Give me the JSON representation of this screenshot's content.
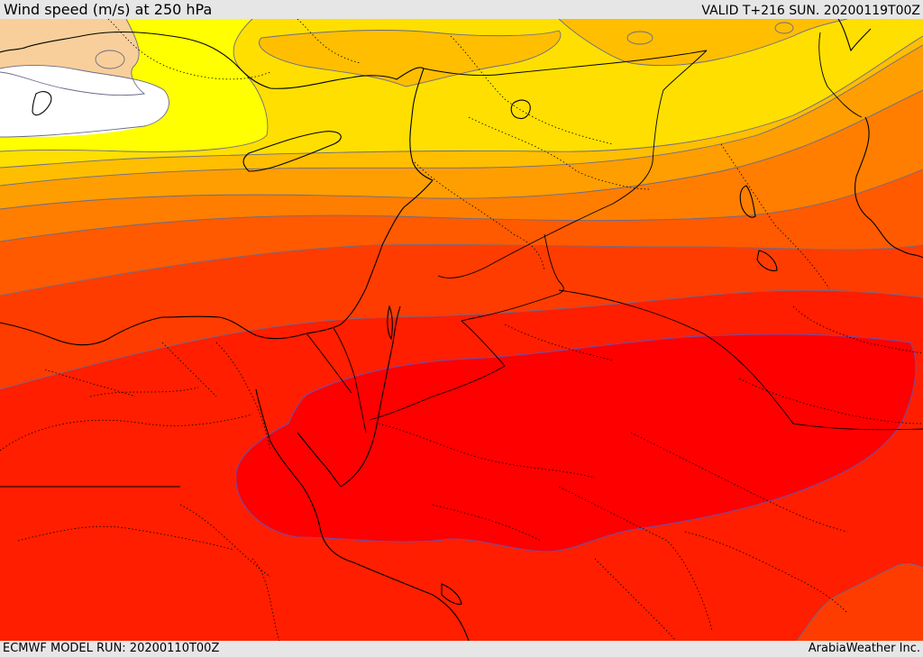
{
  "header": {
    "title": "Wind speed (m/s) at 250 hPa",
    "valid": "VALID T+216 SUN. 20200119T00Z"
  },
  "footer": {
    "model_run": "ECMWF MODEL RUN: 20200110T00Z",
    "credit": "ArabiaWeather Inc."
  },
  "map": {
    "variable": "wind speed",
    "unit": "m/s",
    "level": "250 hPa",
    "colors": {
      "white": "#ffffff",
      "peach": "#f8cf9a",
      "yellow": "#ffff00",
      "gold": "#ffdf00",
      "amber": "#ffbe00",
      "orange_light": "#ff9e00",
      "orange": "#ff7e00",
      "orange_red": "#ff5a00",
      "red_orange": "#ff3c00",
      "red_light": "#ff1e00",
      "red": "#ff0000",
      "contour": "#6b6b8a",
      "boundary": "#000000"
    }
  }
}
